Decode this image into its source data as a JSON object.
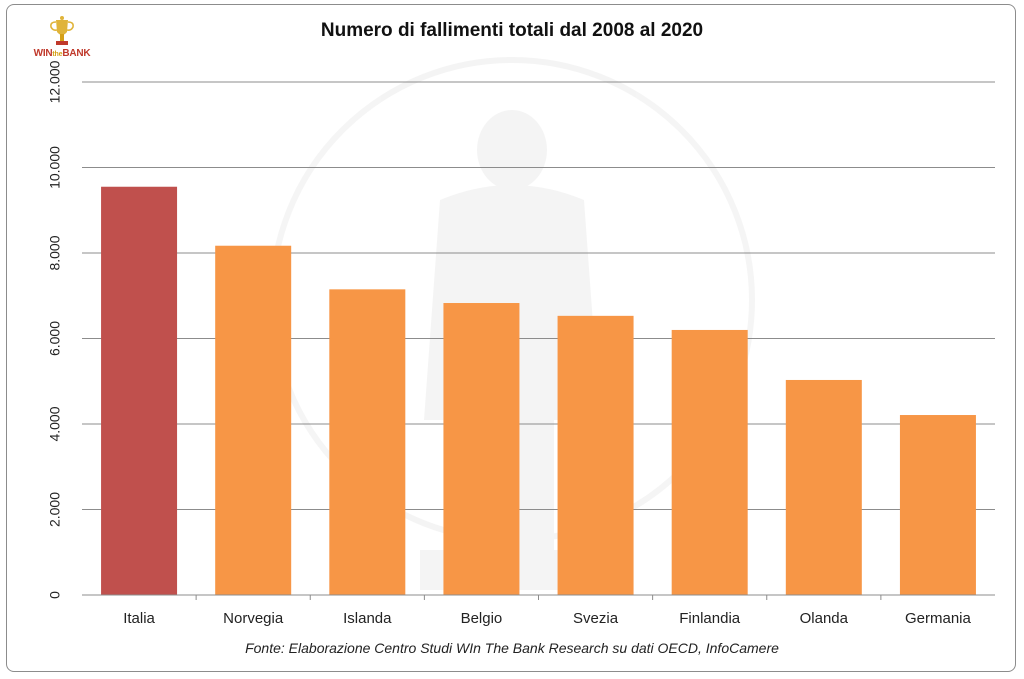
{
  "logo": {
    "main": "WIN",
    "mid": "the",
    "end": "BANK"
  },
  "chart_data": {
    "type": "bar",
    "title": "Numero di fallimenti totali dal 2008 al 2020",
    "caption": "Fonte: Elaborazione Centro Studi WIn The Bank Research su dati OECD, InfoCamere",
    "categories": [
      "Italia",
      "Norvegia",
      "Islanda",
      "Belgio",
      "Svezia",
      "Finlandia",
      "Olanda",
      "Germania"
    ],
    "values": [
      9550,
      8170,
      7150,
      6830,
      6530,
      6200,
      5030,
      4210
    ],
    "ylim": [
      0,
      12000
    ],
    "yticks": [
      0,
      2000,
      4000,
      6000,
      8000,
      10000,
      12000
    ],
    "ytick_labels": [
      "0",
      "2.000",
      "4.000",
      "6.000",
      "8.000",
      "10.000",
      "12.000"
    ],
    "xlabel": "",
    "ylabel": "",
    "grid": true,
    "colors": {
      "highlight": "#c0504d",
      "default": "#f79646",
      "grid": "#8c8c8c"
    },
    "highlight_index": 0
  }
}
